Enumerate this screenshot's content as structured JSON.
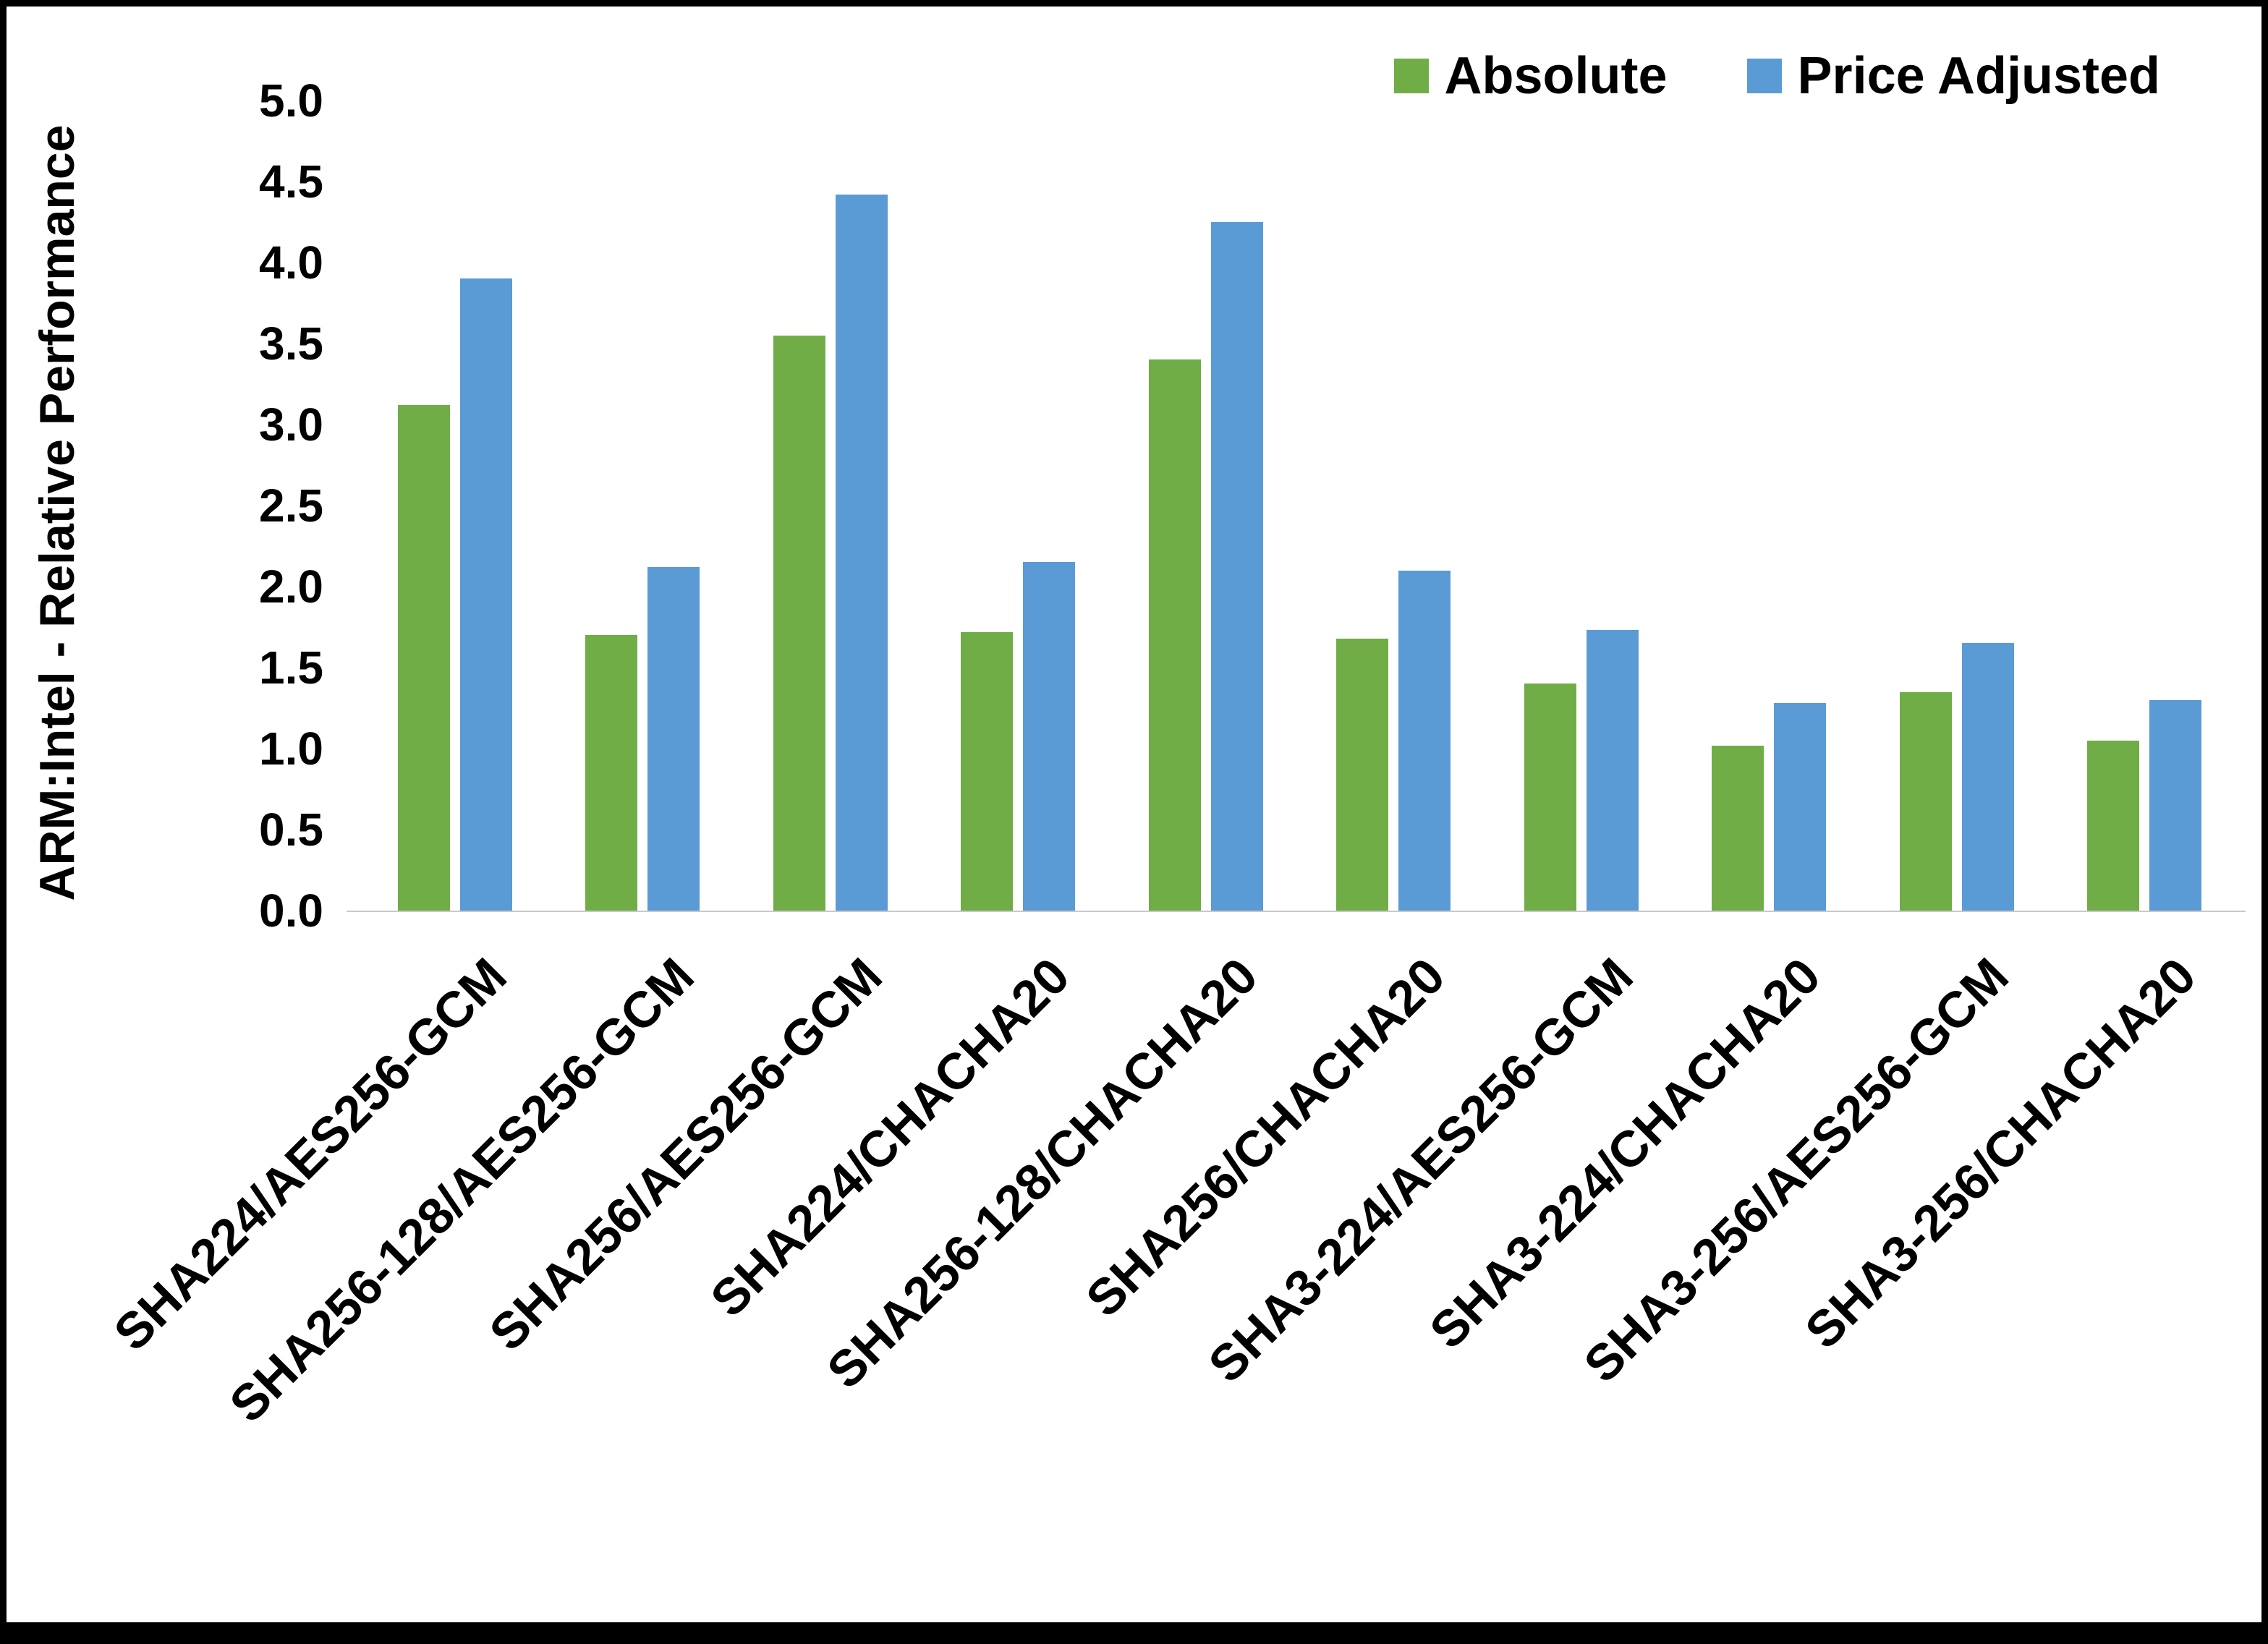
{
  "chart_data": {
    "type": "bar",
    "title": "",
    "xlabel": "",
    "ylabel": "ARM:Intel - Relative Performance",
    "ylim": [
      0,
      5
    ],
    "ytick_step": 0.5,
    "grid": false,
    "legend_position": "top-right",
    "categories": [
      "SHA224/AES256-GCM",
      "SHA256-128/AES256-GCM",
      "SHA256/AES256-GCM",
      "SHA224/CHACHA20",
      "SHA256-128/CHACHA20",
      "SHA256/CHACHA20",
      "SHA3-224/AES256-GCM",
      "SHA3-224/CHACHA20",
      "SHA3-256/AES256-GCM",
      "SHA3-256/CHACHA20"
    ],
    "series": [
      {
        "name": "Absolute",
        "color": "#70AD47",
        "values": [
          3.12,
          1.7,
          3.55,
          1.72,
          3.4,
          1.68,
          1.4,
          1.02,
          1.35,
          1.05
        ]
      },
      {
        "name": "Price Adjusted",
        "color": "#5B9BD5",
        "values": [
          3.9,
          2.12,
          4.42,
          2.15,
          4.25,
          2.1,
          1.73,
          1.28,
          1.65,
          1.3
        ]
      }
    ]
  }
}
